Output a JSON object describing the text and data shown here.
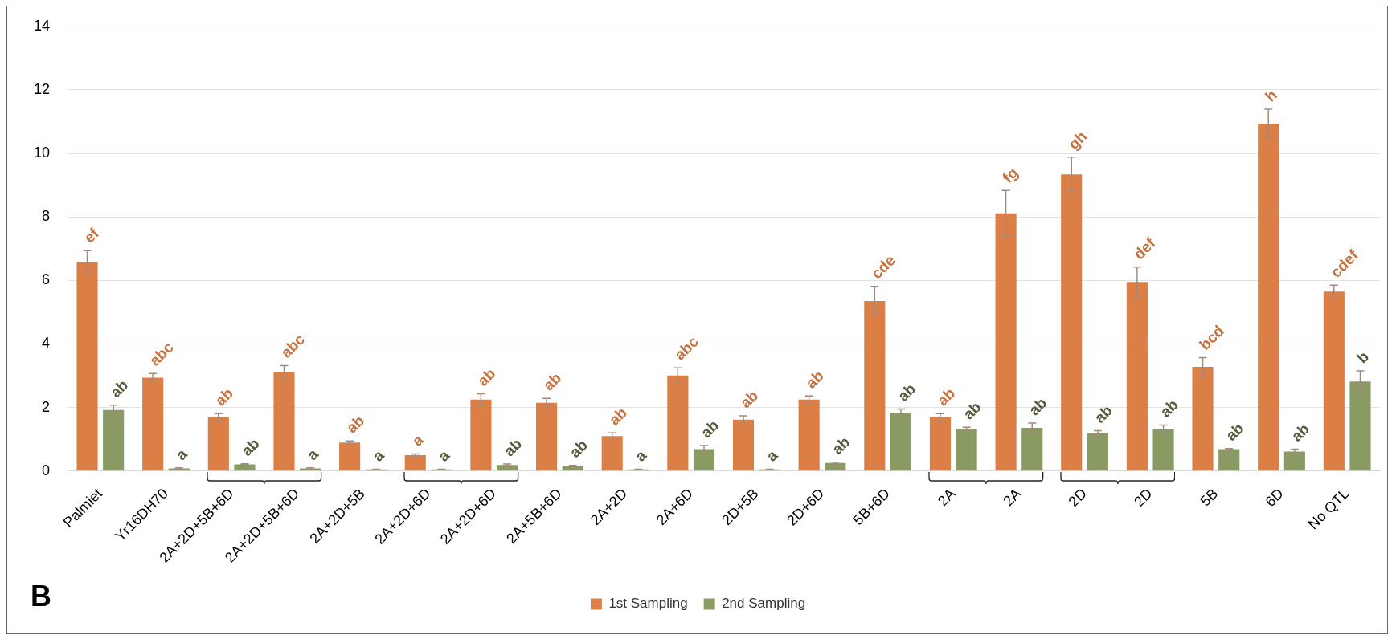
{
  "chart_data": {
    "type": "bar",
    "categories": [
      "Palmiet",
      "Yr16DH70",
      "2A+2D+5B+6D",
      "2A+2D+5B+6D",
      "2A+2D+5B",
      "2A+2D+6D",
      "2A+2D+6D",
      "2A+5B+6D",
      "2A+2D",
      "2A+6D",
      "2D+5B",
      "2D+6D",
      "5B+6D",
      "2A",
      "2A",
      "2D",
      "2D",
      "5B",
      "6D",
      "No QTL"
    ],
    "series": [
      {
        "name": "1st Sampling",
        "color": "#dc7f47",
        "values": [
          6.57,
          2.94,
          1.69,
          3.11,
          0.9,
          0.5,
          2.25,
          2.15,
          1.1,
          3.01,
          1.62,
          2.25,
          5.35,
          1.69,
          8.11,
          9.34,
          5.95,
          3.28,
          10.94,
          5.65
        ],
        "errors": [
          0.37,
          0.13,
          0.12,
          0.21,
          0.05,
          0.04,
          0.18,
          0.14,
          0.1,
          0.24,
          0.12,
          0.11,
          0.46,
          0.12,
          0.72,
          0.54,
          0.47,
          0.29,
          0.45,
          0.2
        ],
        "value_labels": [
          "ef",
          "abc",
          "ab",
          "abc",
          "ab",
          "a",
          "ab",
          "ab",
          "ab",
          "abc",
          "ab",
          "ab",
          "cde",
          "ab",
          "fg",
          "gh",
          "def",
          "bcd",
          "h",
          "cdef"
        ]
      },
      {
        "name": "2nd Sampling",
        "color": "#8a9a63",
        "values": [
          1.92,
          0.08,
          0.21,
          0.08,
          0.05,
          0.05,
          0.19,
          0.16,
          0.05,
          0.69,
          0.05,
          0.25,
          1.84,
          1.32,
          1.36,
          1.19,
          1.31,
          0.69,
          0.61,
          2.82
        ],
        "errors": [
          0.15,
          0.02,
          0.02,
          0.02,
          0.01,
          0.01,
          0.03,
          0.02,
          0.01,
          0.11,
          0.01,
          0.03,
          0.11,
          0.06,
          0.15,
          0.08,
          0.14,
          0.02,
          0.08,
          0.33
        ],
        "value_labels": [
          "ab",
          "a",
          "ab",
          "a",
          "a",
          "a",
          "ab",
          "ab",
          "a",
          "ab",
          "a",
          "ab",
          "ab",
          "ab",
          "ab",
          "ab",
          "ab",
          "ab",
          "ab",
          "b"
        ]
      }
    ],
    "ylim": [
      0,
      14
    ],
    "yticks": [
      0,
      2,
      4,
      6,
      8,
      10,
      12,
      14
    ],
    "grid": "y",
    "legend": "bottom",
    "annotations": [
      "B"
    ]
  }
}
